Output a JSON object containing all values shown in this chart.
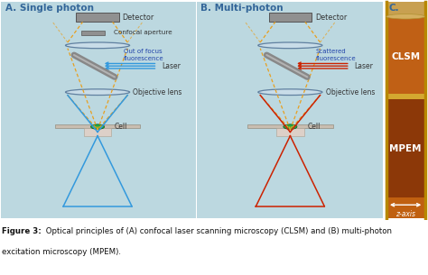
{
  "panel_A_title": "A. Single photon",
  "panel_B_title": "B. Multi-photon",
  "panel_C_title": "C.",
  "bg_color": "#bcd8e0",
  "fig_bg": "#ffffff",
  "detector_color": "#909090",
  "detector_edge": "#555555",
  "lens_color": "#c8dce8",
  "lens_edge": "#6080a0",
  "mirror_color": "#888888",
  "mirror_shine": "#cccccc",
  "cell_color_A": "#22aa44",
  "cell_color_B": "#22aa44",
  "cell_stage_color": "#c8bdb0",
  "cell_stage_edge": "#888070",
  "cell_holder_color": "#ddd0c8",
  "laser_color_A": "#3399dd",
  "laser_color_B": "#cc2200",
  "cone_color_A": "#3399dd",
  "cone_color_B": "#cc2200",
  "dashed_color": "#e8a020",
  "aperture_color": "#909090",
  "text_label_color": "#333333",
  "text_blue": "#336699",
  "photo_tube_left": "#cc8800",
  "photo_tube_right": "#cc8800",
  "photo_clsm_color": "#c06010",
  "photo_mpem_color": "#8c3808",
  "photo_divider": "#d4aa40",
  "photo_top_color": "#c8a050",
  "caption_color": "#111111",
  "caption_bold": "Figure 3:",
  "caption_normal": " Optical principles of (A) confocal laser scanning microscopy (CLSM) and (B) multi-photon excitation microscopy (MPEM)."
}
